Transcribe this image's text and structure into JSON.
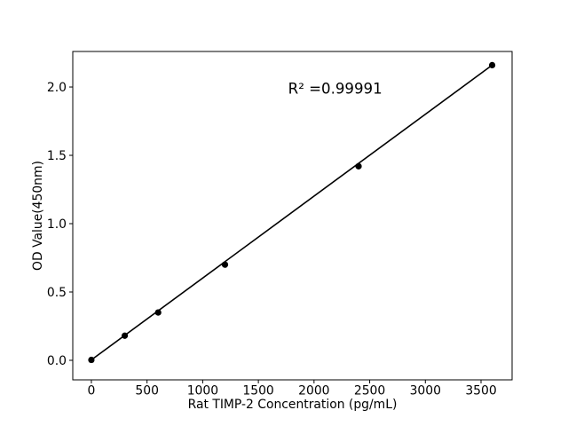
{
  "figure": {
    "background": "#ffffff",
    "frame_color": "#000000"
  },
  "chart_data": {
    "type": "scatter",
    "title": "",
    "xlabel": "Rat TIMP-2 Concentration (pg/mL)",
    "ylabel": "OD Value(450nm)",
    "x": [
      0,
      300,
      600,
      1200,
      2400,
      3600
    ],
    "y": [
      0.003,
      0.18,
      0.35,
      0.7,
      1.42,
      2.16
    ],
    "annotation": {
      "text": "R² =0.99991",
      "x": 2190,
      "y": 1.99
    },
    "xticks": [
      0,
      500,
      1000,
      1500,
      2000,
      2500,
      3000,
      3500
    ],
    "yticks": [
      0,
      0.5,
      1,
      1.5,
      2
    ],
    "xlim": [
      -167,
      3779
    ],
    "ylim": [
      -0.143,
      2.26
    ],
    "grid": false,
    "legend": null,
    "line": true,
    "fit_line": "linear",
    "marker": "circle",
    "color": "#000000"
  }
}
